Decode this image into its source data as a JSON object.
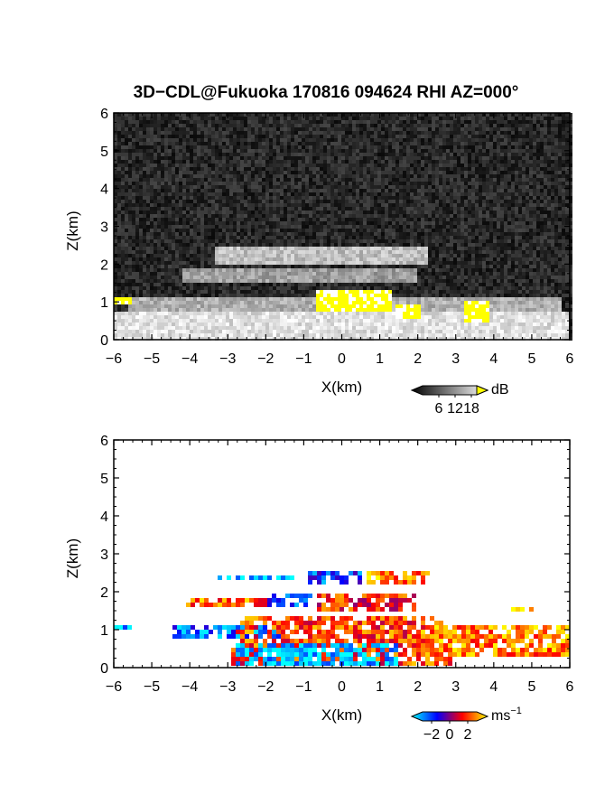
{
  "title": "3D−CDL@Fukuoka 170816 094624 RHI AZ=000°",
  "chart_data": [
    {
      "type": "heatmap",
      "panel": "top",
      "quantity": "signal intensity",
      "xlabel": "X(km)",
      "ylabel": "Z(km)",
      "xlim": [
        -6,
        6
      ],
      "ylim": [
        0,
        6
      ],
      "xticks": [
        "−6",
        "−5",
        "−4",
        "−3",
        "−2",
        "−1",
        "0",
        "1",
        "2",
        "3",
        "4",
        "5",
        "6"
      ],
      "yticks": [
        "0",
        "1",
        "2",
        "3",
        "4",
        "5",
        "6"
      ],
      "colorbar": {
        "unit": "dB",
        "ticks": [
          "6",
          "12",
          "18"
        ],
        "range": [
          0,
          20
        ],
        "colors": [
          "#000000",
          "#ffffff",
          "#ffff00"
        ]
      },
      "features": [
        {
          "kind": "noise-background",
          "level_db": [
            2,
            6
          ]
        },
        {
          "kind": "layer",
          "x": [
            -3.3,
            2.3
          ],
          "z": [
            2.0,
            2.45
          ],
          "level_db": 12
        },
        {
          "kind": "layer",
          "x": [
            -4.2,
            2.0
          ],
          "z": [
            1.5,
            1.9
          ],
          "level_db": 10
        },
        {
          "kind": "layer",
          "x": [
            -5.6,
            5.8
          ],
          "z": [
            0.75,
            1.15
          ],
          "level_db": 11
        },
        {
          "kind": "near-ground",
          "x": [
            -6,
            6
          ],
          "z": [
            0,
            0.7
          ],
          "level_db": 14
        },
        {
          "kind": "strong-echo",
          "x": [
            -0.7,
            1.3
          ],
          "z": [
            0.75,
            1.3
          ],
          "level_db": 18
        },
        {
          "kind": "strong-echo",
          "x": [
            1.4,
            2.1
          ],
          "z": [
            0.55,
            0.95
          ],
          "level_db": 18
        },
        {
          "kind": "strong-echo",
          "x": [
            3.2,
            3.9
          ],
          "z": [
            0.45,
            1.05
          ],
          "level_db": 18
        },
        {
          "kind": "strong-echo",
          "x": [
            -6,
            -5.5
          ],
          "z": [
            0.9,
            1.1
          ],
          "level_db": 18
        }
      ]
    },
    {
      "type": "heatmap",
      "panel": "bottom",
      "quantity": "radial velocity",
      "xlabel": "X(km)",
      "ylabel": "Z(km)",
      "xlim": [
        -6,
        6
      ],
      "ylim": [
        0,
        6
      ],
      "xticks": [
        "−6",
        "−5",
        "−4",
        "−3",
        "−2",
        "−1",
        "0",
        "1",
        "2",
        "3",
        "4",
        "5",
        "6"
      ],
      "yticks": [
        "0",
        "1",
        "2",
        "3",
        "4",
        "5",
        "6"
      ],
      "colorbar": {
        "unit": "ms−1",
        "unit_base": "ms",
        "unit_exp": "−1",
        "ticks": [
          "−2",
          "0",
          "2"
        ],
        "range": [
          -3,
          3
        ],
        "colors": [
          "#00ffff",
          "#0000ff",
          "#ff0000",
          "#ffff00"
        ]
      },
      "features": [
        {
          "kind": "layer",
          "x": [
            -3.3,
            -1.2
          ],
          "z": [
            2.3,
            2.45
          ],
          "velocity": -2.5
        },
        {
          "kind": "layer",
          "x": [
            -0.9,
            0.5
          ],
          "z": [
            2.2,
            2.5
          ],
          "velocity": -1.5
        },
        {
          "kind": "layer",
          "x": [
            0.5,
            2.3
          ],
          "z": [
            2.25,
            2.5
          ],
          "velocity": 2.0
        },
        {
          "kind": "layer",
          "x": [
            -4.1,
            -2.0
          ],
          "z": [
            1.55,
            1.85
          ],
          "velocity": 1.8
        },
        {
          "kind": "layer",
          "x": [
            -2.0,
            -0.8
          ],
          "z": [
            1.55,
            1.9
          ],
          "velocity": -1.5
        },
        {
          "kind": "layer",
          "x": [
            -0.6,
            2.0
          ],
          "z": [
            1.5,
            1.9
          ],
          "velocity": 1.2
        },
        {
          "kind": "layer",
          "x": [
            -4.5,
            -1.5
          ],
          "z": [
            0.8,
            1.15
          ],
          "velocity": -1.8
        },
        {
          "kind": "fan",
          "x": [
            -3.0,
            3.0
          ],
          "z": [
            0,
            1.4
          ],
          "velocity": 1.5
        },
        {
          "kind": "near-ground",
          "x": [
            -2.8,
            1.5
          ],
          "z": [
            0.05,
            0.6
          ],
          "velocity": -2.5
        },
        {
          "kind": "layer",
          "x": [
            2.0,
            6.0
          ],
          "z": [
            0.3,
            1.1
          ],
          "velocity": 2.0
        },
        {
          "kind": "spot",
          "x": [
            -6.0,
            -5.5
          ],
          "z": [
            0.95,
            1.1
          ],
          "velocity": -2.5
        },
        {
          "kind": "spot",
          "x": [
            4.4,
            5.1
          ],
          "z": [
            1.5,
            1.65
          ],
          "velocity": 2.5
        }
      ]
    }
  ]
}
